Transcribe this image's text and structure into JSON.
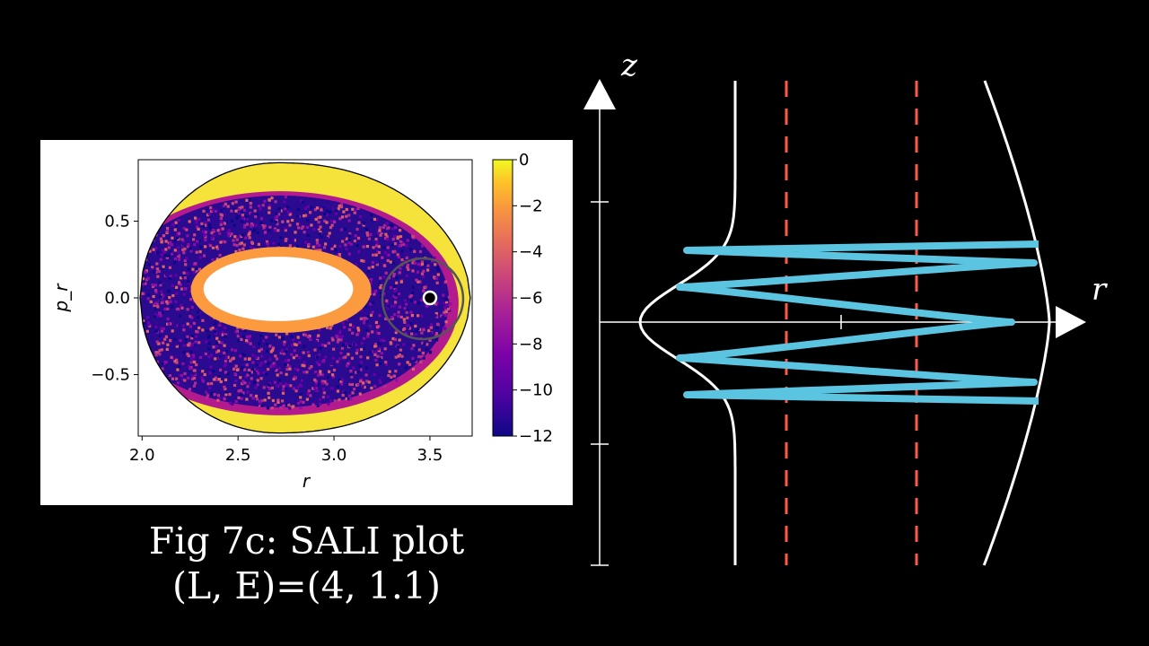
{
  "caption": {
    "line1": "Fig 7c: SALI plot",
    "line2": "(L, E)=(4, 1.1)"
  },
  "chart_data": [
    {
      "type": "heatmap",
      "xlabel": "r",
      "ylabel": "p_r",
      "xlim": [
        1.98,
        3.72
      ],
      "ylim": [
        -0.9,
        0.9
      ],
      "xticks": [
        "2.0",
        "2.5",
        "3.0",
        "3.5"
      ],
      "yticks": [
        "−0.5",
        "0.0",
        "0.5"
      ],
      "colorbar": {
        "range": [
          -12,
          0
        ],
        "ticks": [
          "0",
          "−2",
          "−4",
          "−6",
          "−8",
          "−10",
          "−12"
        ],
        "colormap": "plasma"
      },
      "boundary": {
        "r_min": 1.99,
        "r_max": 3.71,
        "pr_max": 0.88
      },
      "regular_island_center": {
        "r": 2.71,
        "pr": 0.0
      },
      "marked_point": {
        "r": 3.5,
        "pr": 0.0
      },
      "highlight_circle": {
        "r": 3.5,
        "pr": 0.0
      },
      "grid": false
    },
    {
      "type": "line",
      "xlabel": "r",
      "ylabel": "z",
      "series": [
        {
          "color": "#ffffff"
        },
        {
          "color": "#ffffff"
        },
        {
          "color": "#ff5a48"
        },
        {
          "color": "#ff5a48"
        },
        {
          "color": "#5bc4e0"
        }
      ],
      "axis_color": "#ffffff"
    }
  ]
}
